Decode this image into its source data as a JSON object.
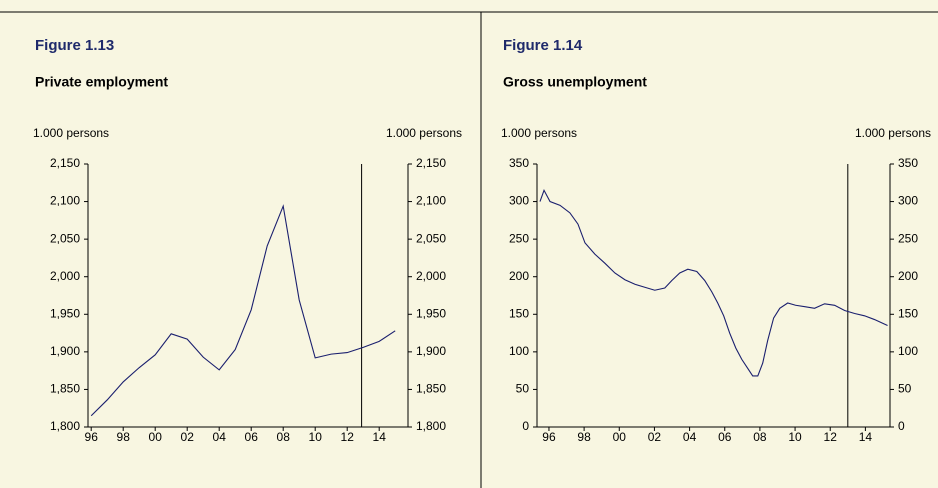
{
  "chart_data": [
    {
      "type": "line",
      "title": "Figure 1.13",
      "subtitle": "Private employment",
      "y_label": "1.000 persons",
      "y2_label": "1.000 persons",
      "x": [
        1996,
        1997,
        1998,
        1999,
        2000,
        2001,
        2002,
        2003,
        2004,
        2005,
        2006,
        2007,
        2008,
        2009,
        2010,
        2011,
        2012,
        2013,
        2014,
        2015
      ],
      "values": [
        1815,
        1836,
        1860,
        1879,
        1896,
        1924,
        1917,
        1893,
        1876,
        1903,
        1956,
        2041,
        2094,
        1969,
        1892,
        1897,
        1899,
        1906,
        1914,
        1928
      ],
      "color": "#1a1f6e",
      "xlim": [
        1995.8,
        2015.8
      ],
      "xticks": [
        {
          "value": 1996,
          "label": "96"
        },
        {
          "value": 1998,
          "label": "98"
        },
        {
          "value": 2000,
          "label": "00"
        },
        {
          "value": 2002,
          "label": "02"
        },
        {
          "value": 2004,
          "label": "04"
        },
        {
          "value": 2006,
          "label": "06"
        },
        {
          "value": 2008,
          "label": "08"
        },
        {
          "value": 2010,
          "label": "10"
        },
        {
          "value": 2012,
          "label": "12"
        },
        {
          "value": 2014,
          "label": "14"
        }
      ],
      "ylim": [
        1800,
        2150
      ],
      "yticks": [
        {
          "value": 1800,
          "label": "1,800"
        },
        {
          "value": 1850,
          "label": "1,850"
        },
        {
          "value": 1900,
          "label": "1,900"
        },
        {
          "value": 1950,
          "label": "1,950"
        },
        {
          "value": 2000,
          "label": "2,000"
        },
        {
          "value": 2050,
          "label": "2,050"
        },
        {
          "value": 2100,
          "label": "2,100"
        },
        {
          "value": 2150,
          "label": "2,150"
        }
      ],
      "vline_x": 2012.9
    },
    {
      "type": "line",
      "title": "Figure 1.14",
      "subtitle": "Gross unemployment",
      "y_label": "1.000 persons",
      "y2_label": "1.000 persons",
      "x": [
        1995.49,
        1995.72,
        1996.06,
        1996.63,
        1997.19,
        1997.65,
        1998.05,
        1998.61,
        1999.18,
        1999.75,
        2000.32,
        2000.89,
        2001.45,
        2002.02,
        2002.59,
        2002.99,
        2003.44,
        2003.9,
        2004.41,
        2004.86,
        2005.26,
        2005.6,
        2005.94,
        2006.28,
        2006.63,
        2006.97,
        2007.31,
        2007.59,
        2007.88,
        2008.16,
        2008.44,
        2008.78,
        2009.13,
        2009.58,
        2010.03,
        2010.6,
        2011.11,
        2011.68,
        2012.25,
        2012.82,
        2013.39,
        2013.95,
        2014.52,
        2015.26
      ],
      "values": [
        300,
        315,
        300,
        295,
        285,
        270,
        245,
        230,
        218,
        205,
        196,
        190,
        186,
        182,
        185,
        195,
        205,
        210,
        207,
        195,
        180,
        165,
        148,
        125,
        105,
        90,
        78,
        68,
        68,
        85,
        115,
        145,
        158,
        165,
        162,
        160,
        158,
        164,
        162,
        155,
        151,
        148,
        143,
        135
      ],
      "color": "#1a1f6e",
      "xlim": [
        1995.32,
        2015.4
      ],
      "xticks": [
        {
          "value": 1996,
          "label": "96"
        },
        {
          "value": 1998,
          "label": "98"
        },
        {
          "value": 2000,
          "label": "00"
        },
        {
          "value": 2002,
          "label": "02"
        },
        {
          "value": 2004,
          "label": "04"
        },
        {
          "value": 2006,
          "label": "06"
        },
        {
          "value": 2008,
          "label": "08"
        },
        {
          "value": 2010,
          "label": "10"
        },
        {
          "value": 2012,
          "label": "12"
        },
        {
          "value": 2014,
          "label": "14"
        }
      ],
      "ylim": [
        0,
        350
      ],
      "yticks": [
        0,
        50,
        100,
        150,
        200,
        250,
        300,
        350
      ],
      "vline_x": 2013.0
    }
  ]
}
